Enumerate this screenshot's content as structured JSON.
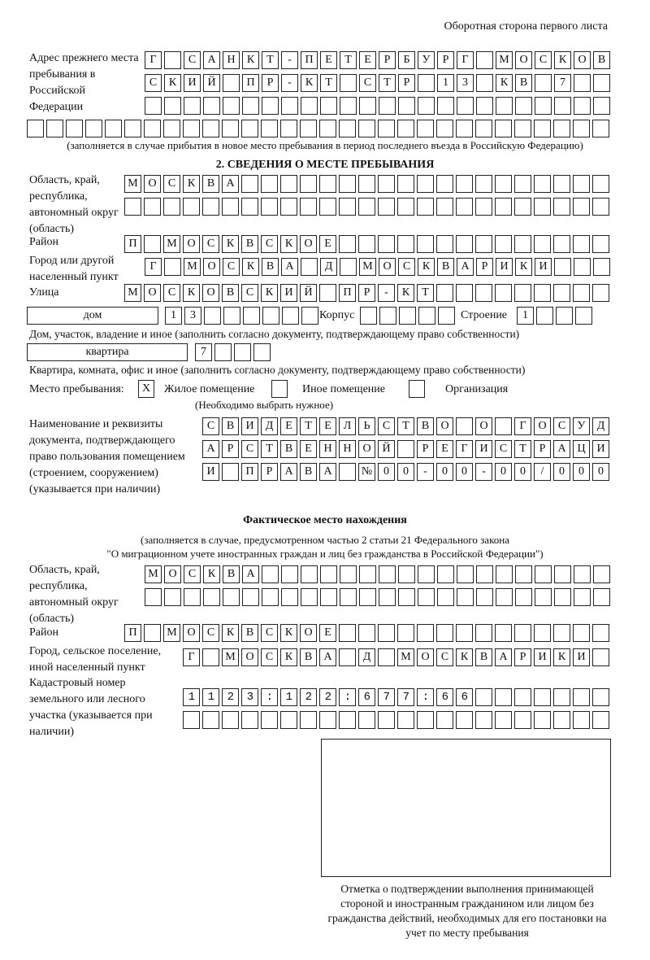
{
  "header": "Оборотная сторона первого листа",
  "previous_address": {
    "label": "Адрес прежнего места пребывания в Российской Федерации",
    "rows": [
      "Г САНКТ-ПЕТЕРБУРГ МОСКОВ",
      "СКИЙ ПР-КТ СТР 13 КВ 7  ",
      "",
      ""
    ],
    "note": "(заполняется в случае прибытия в новое место пребывания в период последнего въезда в Российскую Федерацию)"
  },
  "section2": {
    "title": "2. СВЕДЕНИЯ О МЕСТЕ ПРЕБЫВАНИЯ",
    "region_label": "Область, край, республика, автономный округ (область)",
    "region_rows": [
      "МОСКВА",
      ""
    ],
    "district_label": "Район",
    "district": "П МОСКВСКОЕ",
    "city_label": "Город или другой населенный пункт",
    "city": "Г МОСКВА Д МОСКВАРИКИ",
    "street_label": "Улица",
    "street": "МОСКОВСКИЙ ПР-КТ",
    "house_type": "дом",
    "house": "13",
    "korpus_label": "Корпус",
    "korpus": "",
    "building_label": "Строение",
    "building": "1",
    "house_note": "Дом, участок, владение и иное (заполнить согласно документу, подтверждающему право собственности)",
    "apt_type": "квартира",
    "apt": "7",
    "apt_note": "Квартира, комната, офис и иное (заполнить согласно документу, подтверждающему право собственности)",
    "place_label": "Место пребывания:",
    "place_options": [
      {
        "label": "Жилое помещение",
        "mark": "X"
      },
      {
        "label": "Иное помещение",
        "mark": ""
      },
      {
        "label": "Организация",
        "mark": ""
      }
    ],
    "place_note": "(Необходимо выбрать нужное)",
    "doc_label": "Наименование и реквизиты документа, подтверждающего право пользования помещением (строением, сооружением) (указывается при наличии)",
    "doc_rows": [
      "СВИДЕТЕЛЬСТВО О ГОСУД",
      "АРСТВЕННОЙ РЕГИСТРАЦИ",
      "И ПРАВА №00-00-00/000"
    ]
  },
  "actual": {
    "title": "Фактическое место нахождения",
    "note1": "(заполняется в случае, предусмотренном частью 2 статьи 21 Федерального закона",
    "note2": "\"О миграционном учете иностранных граждан и лиц без гражданства в Российской Федерации\")",
    "region_label": "Область, край, республика, автономный округ (область)",
    "region_rows": [
      "МОСКВА",
      ""
    ],
    "district_label": "Район",
    "district": "П МОСКВСКОЕ",
    "city_label": "Город, сельское поселение, иной населенный пункт",
    "city": "Г МОСКВА Д МОСКВАРИКИ",
    "cadastre_label": "Кадастровый номер земельного или лесного участка (указывается при наличии)",
    "cadastre_rows": [
      "1123:122:677:66",
      ""
    ]
  },
  "stamp_caption": "Отметка о подтверждении выполнения принимающей стороной и иностранным гражданином или лицом без гражданства действий, необходимых для его постановки на учет по месту пребывания"
}
